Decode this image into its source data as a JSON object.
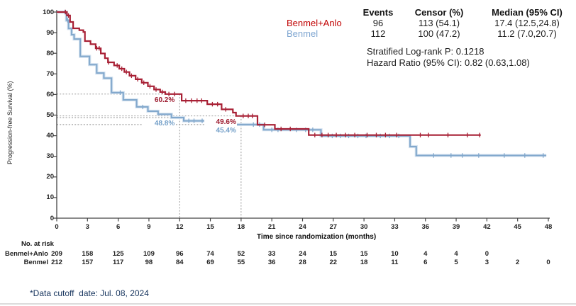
{
  "chart_data": {
    "type": "line",
    "subtype": "kaplan-meier-step",
    "title": "",
    "xlabel": "Time since randomization (months)",
    "ylabel": "Progression-free Survival (%)",
    "xlim": [
      0,
      48
    ],
    "ylim": [
      0,
      100
    ],
    "x_ticks": [
      0,
      3,
      6,
      9,
      12,
      15,
      18,
      21,
      24,
      27,
      30,
      33,
      36,
      39,
      42,
      45,
      48
    ],
    "y_ticks": [
      0,
      10,
      20,
      30,
      40,
      50,
      60,
      70,
      80,
      90,
      100
    ],
    "grid": false,
    "legend_position": "top-right",
    "series": [
      {
        "name": "Benmel+Anlo",
        "color": "#a82035",
        "steps": [
          [
            0,
            100
          ],
          [
            1.0,
            98.3
          ],
          [
            1.3,
            95.2
          ],
          [
            1.6,
            92.1
          ],
          [
            2.2,
            91.2
          ],
          [
            2.6,
            90.3
          ],
          [
            2.75,
            85.9
          ],
          [
            3.3,
            84.4
          ],
          [
            3.8,
            82.4
          ],
          [
            4.3,
            79.9
          ],
          [
            4.7,
            77.6
          ],
          [
            5.0,
            75.6
          ],
          [
            5.6,
            74.1
          ],
          [
            6.1,
            72.5
          ],
          [
            6.6,
            70.9
          ],
          [
            7.1,
            69.1
          ],
          [
            7.7,
            67.4
          ],
          [
            8.3,
            65.7
          ],
          [
            8.9,
            64.0
          ],
          [
            9.5,
            62.4
          ],
          [
            10.1,
            61.2
          ],
          [
            10.6,
            60.2
          ],
          [
            12.2,
            57.0
          ],
          [
            14.7,
            55.3
          ],
          [
            16.1,
            52.8
          ],
          [
            17.2,
            51.2
          ],
          [
            17.5,
            49.6
          ],
          [
            19.6,
            45.3
          ],
          [
            21.3,
            43.3
          ],
          [
            24.6,
            40.3
          ],
          [
            41.4,
            40.3
          ]
        ],
        "censor_times": [
          0.85,
          1.15,
          3.9,
          4.15,
          5.05,
          5.9,
          6.35,
          6.8,
          7.3,
          7.9,
          8.5,
          9.1,
          9.7,
          10.3,
          10.95,
          11.5,
          12.6,
          13.15,
          13.7,
          14.15,
          15.2,
          15.7,
          16.5,
          18.2,
          18.7,
          19.1,
          20.3,
          21.9,
          22.8,
          25.2,
          25.9,
          26.5,
          27.3,
          28.2,
          29.1,
          30.3,
          31.2,
          32.1,
          33.2,
          35.5,
          36.3,
          38.2,
          40.1,
          41.3
        ]
      },
      {
        "name": "Benmel",
        "color": "#82a8cc",
        "halo_color": "#d3e1ef",
        "steps": [
          [
            0,
            100
          ],
          [
            0.95,
            96.0
          ],
          [
            1.15,
            92.0
          ],
          [
            1.45,
            89.0
          ],
          [
            1.7,
            86.9
          ],
          [
            2.3,
            78.5
          ],
          [
            3.2,
            74.5
          ],
          [
            3.9,
            70.4
          ],
          [
            4.6,
            67.9
          ],
          [
            5.35,
            60.9
          ],
          [
            6.5,
            57.4
          ],
          [
            7.8,
            54.0
          ],
          [
            8.9,
            51.9
          ],
          [
            9.9,
            50.4
          ],
          [
            11.2,
            48.8
          ],
          [
            12.4,
            47.2
          ],
          [
            15.3,
            45.4
          ],
          [
            20.2,
            42.9
          ],
          [
            25.8,
            39.9
          ],
          [
            34.5,
            34.7
          ],
          [
            35.1,
            30.4
          ],
          [
            47.8,
            30.4
          ]
        ],
        "censor_times": [
          0.8,
          1.05,
          6.2,
          8.4,
          12.9,
          13.4,
          14.2,
          16.7,
          17.1,
          19.2,
          19.8,
          21.0,
          21.6,
          23.4,
          24.3,
          25.0,
          26.9,
          27.7,
          28.5,
          29.4,
          30.2,
          31.6,
          32.5,
          33.4,
          36.8,
          38.5,
          39.6,
          41.2,
          43.7,
          45.7,
          47.5
        ]
      }
    ],
    "reference_lines": {
      "horizontal": [
        {
          "s": 60.2,
          "to_month": 12
        },
        {
          "s": 49.6,
          "to_month": 18
        },
        {
          "s": 48.8,
          "to_month": 12
        },
        {
          "s": 45.4,
          "to_month": 18
        }
      ],
      "vertical": [
        {
          "month": 12,
          "top_s": 60.2
        },
        {
          "month": 18,
          "top_s": 49.6
        }
      ]
    },
    "annotations": [
      {
        "text": "60.2%",
        "t": 12,
        "s": 60.2,
        "color": "#9d1b2f"
      },
      {
        "text": "48.8%",
        "t": 12,
        "s": 48.8,
        "color": "#739fc8"
      },
      {
        "text": "49.6%",
        "t": 18,
        "s": 49.6,
        "color": "#9d1b2f"
      },
      {
        "text": "45.4%",
        "t": 18,
        "s": 45.4,
        "color": "#739fc8"
      }
    ]
  },
  "legend_table": {
    "headers": [
      "Events",
      "Censor (%)",
      "Median (95% CI)"
    ],
    "rows": [
      {
        "label": "Benmel+Anlo",
        "color": "#c00000",
        "events": "96",
        "censor": "113 (54.1)",
        "median": "17.4 (12.5,24.8)"
      },
      {
        "label": "Benmel",
        "color": "#7fa6d1",
        "events": "112",
        "censor": "100 (47.2)",
        "median": "11.2 (7.0,20.7)"
      }
    ]
  },
  "stats": {
    "logrank": "Stratified Log-rank P: 0.1218",
    "hazard_ratio": "Hazard Ratio (95% CI): 0.82 (0.63,1.08)"
  },
  "risk_table": {
    "title": "No. at risk",
    "months": [
      0,
      3,
      6,
      9,
      12,
      15,
      18,
      21,
      24,
      27,
      30,
      33,
      36,
      39,
      42,
      45,
      48
    ],
    "rows": [
      {
        "label": "Benmel+Anlo",
        "values": [
          209,
          158,
          125,
          109,
          96,
          74,
          52,
          33,
          24,
          15,
          15,
          10,
          4,
          4,
          0
        ]
      },
      {
        "label": "Benmel",
        "values": [
          212,
          157,
          117,
          98,
          84,
          69,
          55,
          36,
          28,
          22,
          18,
          11,
          6,
          5,
          3,
          2,
          0
        ]
      }
    ]
  },
  "footnote": "*Data cutoff  date: Jul. 08, 2024"
}
